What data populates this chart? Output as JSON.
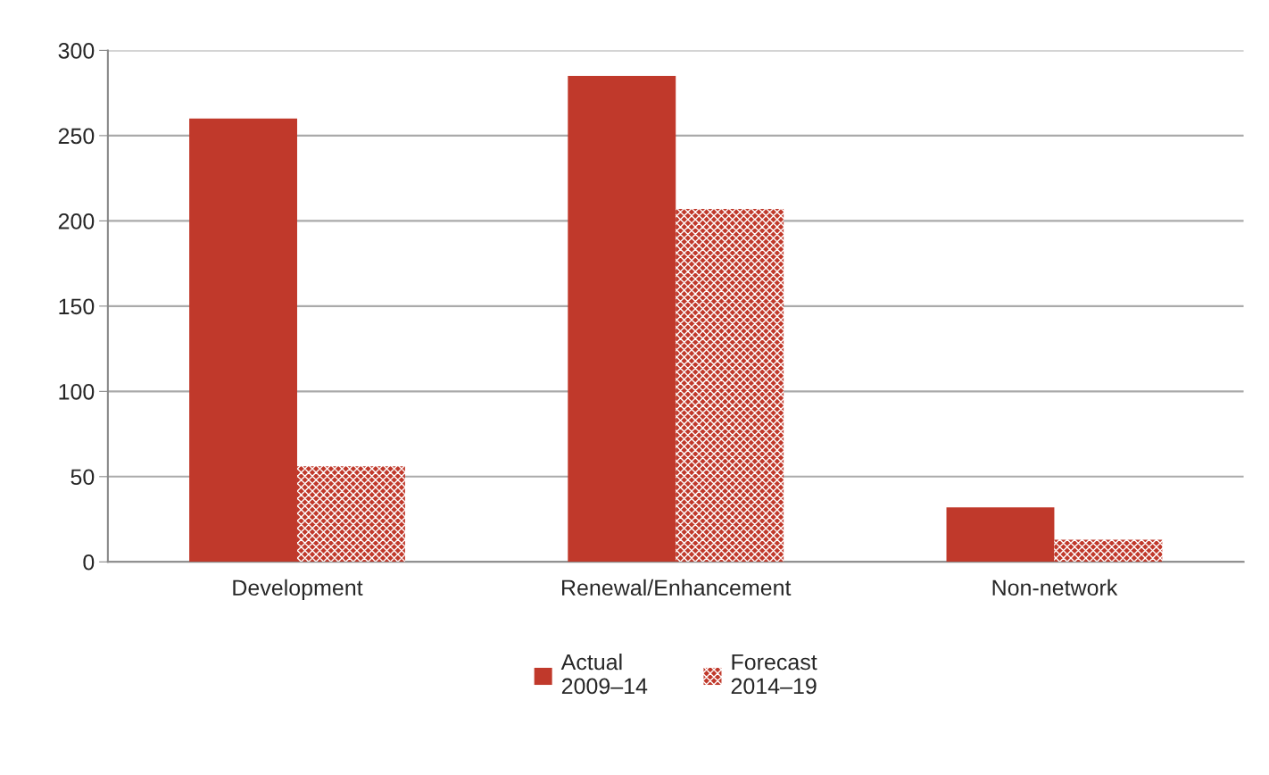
{
  "chart_data": {
    "type": "bar",
    "categories": [
      "Development",
      "Renewal/Enhancement",
      "Non-network"
    ],
    "series": [
      {
        "name": "Actual\n2009–14",
        "color": "#c0392b",
        "values": [
          260,
          285,
          32
        ]
      },
      {
        "name": "Forecast\n2014–19",
        "color": "#c0392b",
        "values": [
          56,
          207,
          13
        ]
      }
    ],
    "ylim": [
      0,
      300
    ],
    "yticks": [
      0,
      50,
      100,
      150,
      200,
      250,
      300
    ],
    "grid": "y",
    "legend": "bottom"
  }
}
